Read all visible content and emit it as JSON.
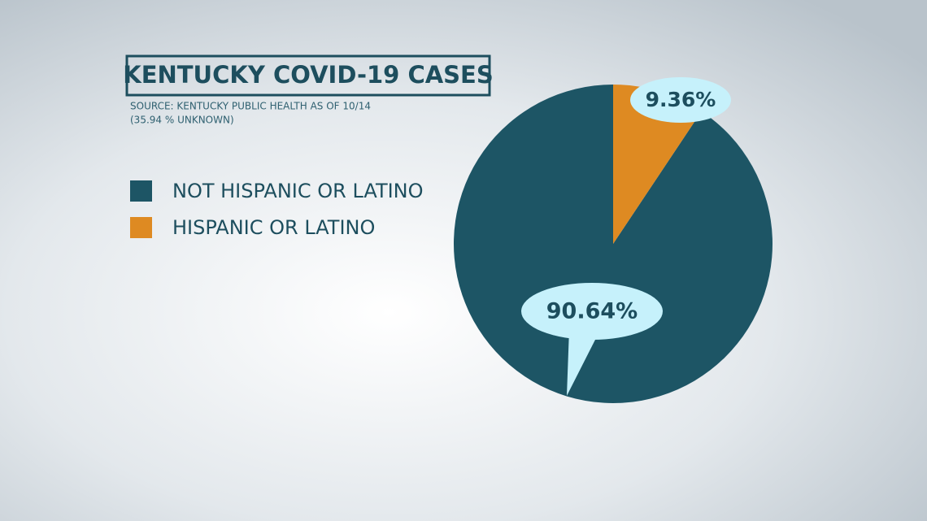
{
  "chart_data": {
    "type": "pie",
    "title": "KENTUCKY COVID-19 CASES",
    "subtitle": "SOURCE: KENTUCKY PUBLIC HEALTH AS OF 10/14",
    "note": "(35.94 % UNKNOWN)",
    "categories": [
      "NOT HISPANIC OR LATINO",
      "HISPANIC OR LATINO"
    ],
    "values": [
      90.64,
      9.36
    ],
    "value_labels": [
      "90.64%",
      "9.36%"
    ],
    "colors": [
      "#1d5565",
      "#de8a22"
    ],
    "legend": "left"
  }
}
